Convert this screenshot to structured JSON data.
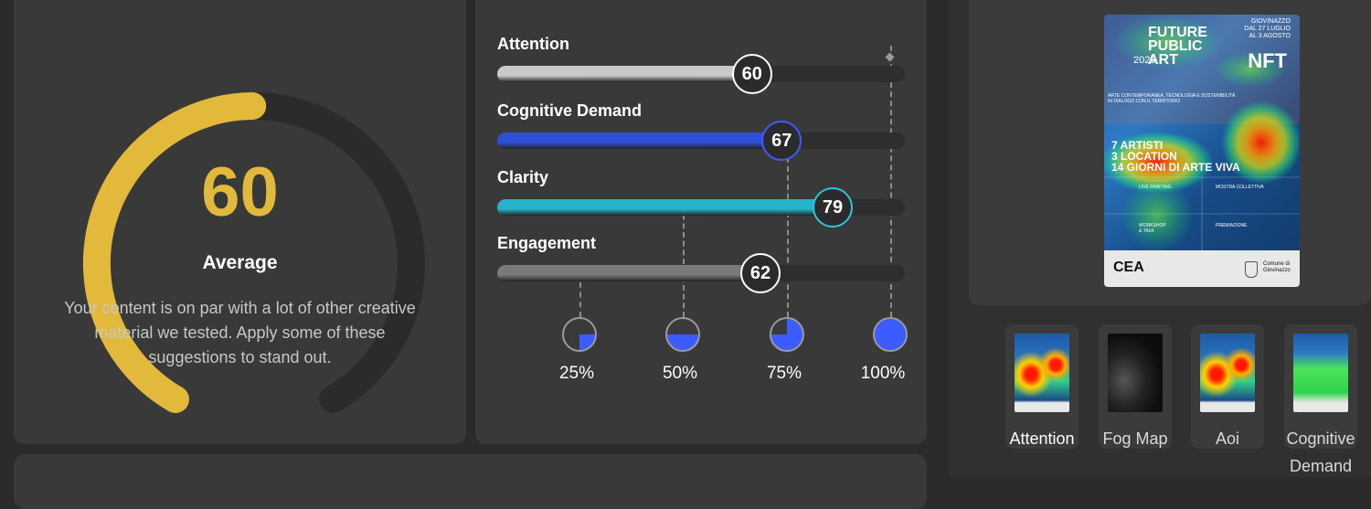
{
  "score": {
    "value": "60",
    "fraction": 0.6,
    "label": "Average",
    "description": "Your content is on par with a lot of other creative material we tested. Apply some of these suggestions to stand out.",
    "accent_color": "#e2b93b"
  },
  "metrics": [
    {
      "name": "Attention",
      "value": "60",
      "fraction": 0.6,
      "color": "#c9c9c9",
      "ring": "#ffffff"
    },
    {
      "name": "Cognitive Demand",
      "value": "67",
      "fraction": 0.67,
      "color": "#2f4fd6",
      "ring": "#3d5cff"
    },
    {
      "name": "Clarity",
      "value": "79",
      "fraction": 0.79,
      "color": "#25b4c9",
      "ring": "#2ec5dc"
    },
    {
      "name": "Engagement",
      "value": "62",
      "fraction": 0.62,
      "color": "#7a7a7a",
      "ring": "#ffffff"
    }
  ],
  "scale": [
    {
      "label": "25%",
      "fraction": 0.25
    },
    {
      "label": "50%",
      "fraction": 0.5
    },
    {
      "label": "75%",
      "fraction": 0.75
    },
    {
      "label": "100%",
      "fraction": 1.0
    }
  ],
  "scale_color": "#3d5cff",
  "poster": {
    "top_text": "GIOVINAZZO\nDAL 27 LUGLIO\nAL 3 AGOSTO",
    "title": "FUTURE\nPUBLIC\nART",
    "year": "2025",
    "nft": "NFT",
    "subtitle": "ARTE CONTEMPORANEA, TECNOLOGIA E SOSTENIBILITÀ\nIN DIALOGO CON IL TERRITORIO",
    "stats": "7 ARTISTI\n3 LOCATION\n14 GIORNI DI ARTE VIVA",
    "boxes": [
      "LIVE PAINTING",
      "MOSTRA COLLETTIVA",
      "WORKSHOP\n& TALK",
      "PREMIAZIONE"
    ],
    "logo": "CEA",
    "comune": "Comune di\nGiovinazzo"
  },
  "thumbnails": [
    {
      "label": "Attention",
      "style": "heat",
      "active": true
    },
    {
      "label": "Fog Map",
      "style": "fog",
      "active": false
    },
    {
      "label": "Aoi",
      "style": "heat",
      "active": false
    },
    {
      "label": "Cognitive Demand",
      "style": "green",
      "active": false
    }
  ]
}
